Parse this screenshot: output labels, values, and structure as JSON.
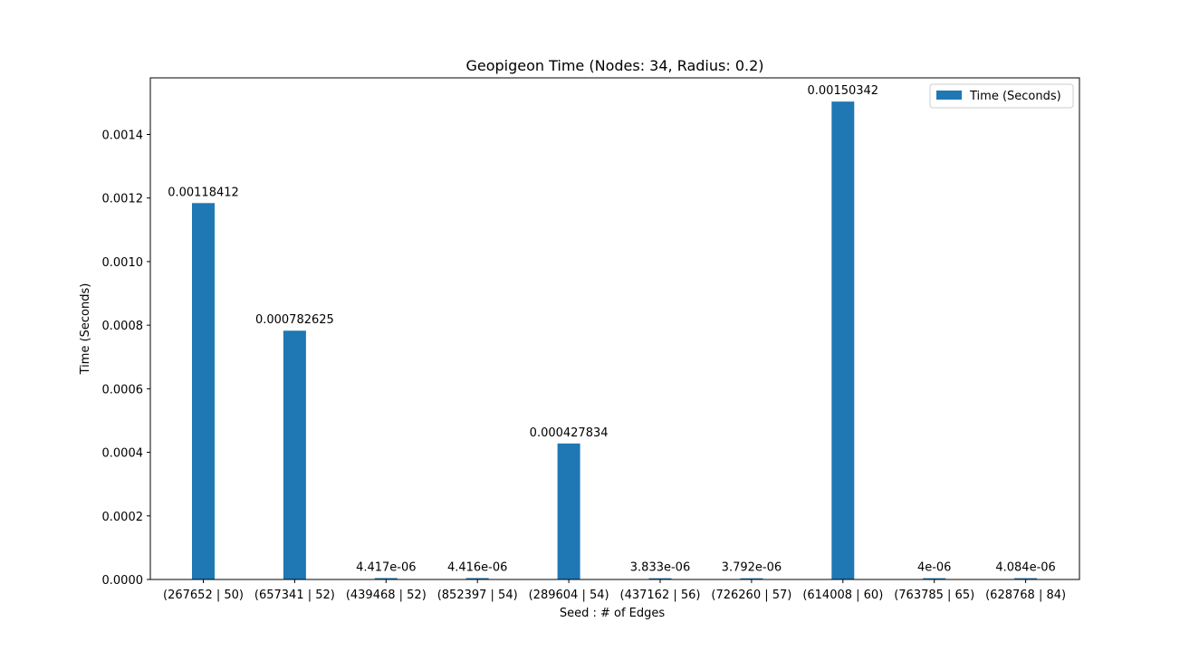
{
  "chart_data": {
    "type": "bar",
    "title": "Geopigeon Time (Nodes: 34, Radius: 0.2)",
    "xlabel": "Seed : # of Edges",
    "ylabel": "Time (Seconds)",
    "categories": [
      "(267652 | 50)",
      "(657341 | 52)",
      "(439468 | 52)",
      "(852397 | 54)",
      "(289604 | 54)",
      "(437162 | 56)",
      "(726260 | 57)",
      "(614008 | 60)",
      "(763785 | 65)",
      "(628768 | 84)"
    ],
    "series": [
      {
        "name": "Time (Seconds)",
        "color": "#1f77b4",
        "values": [
          0.00118412,
          0.000782625,
          4.417e-06,
          4.416e-06,
          0.000427834,
          3.833e-06,
          3.792e-06,
          0.00150342,
          4e-06,
          4.084e-06
        ],
        "labels": [
          "0.00118412",
          "0.000782625",
          "4.417e-06",
          "4.416e-06",
          "0.000427834",
          "3.833e-06",
          "3.792e-06",
          "0.00150342",
          "4e-06",
          "4.084e-06"
        ]
      }
    ],
    "ylim": [
      0,
      0.001578
    ],
    "yticks": [
      0,
      0.0002,
      0.0004,
      0.0006,
      0.0008,
      0.001,
      0.0012,
      0.0014
    ],
    "ytick_labels": [
      "0.0000",
      "0.0002",
      "0.0004",
      "0.0006",
      "0.0008",
      "0.0010",
      "0.0012",
      "0.0014"
    ],
    "grid": false,
    "legend_position": "top-right"
  }
}
